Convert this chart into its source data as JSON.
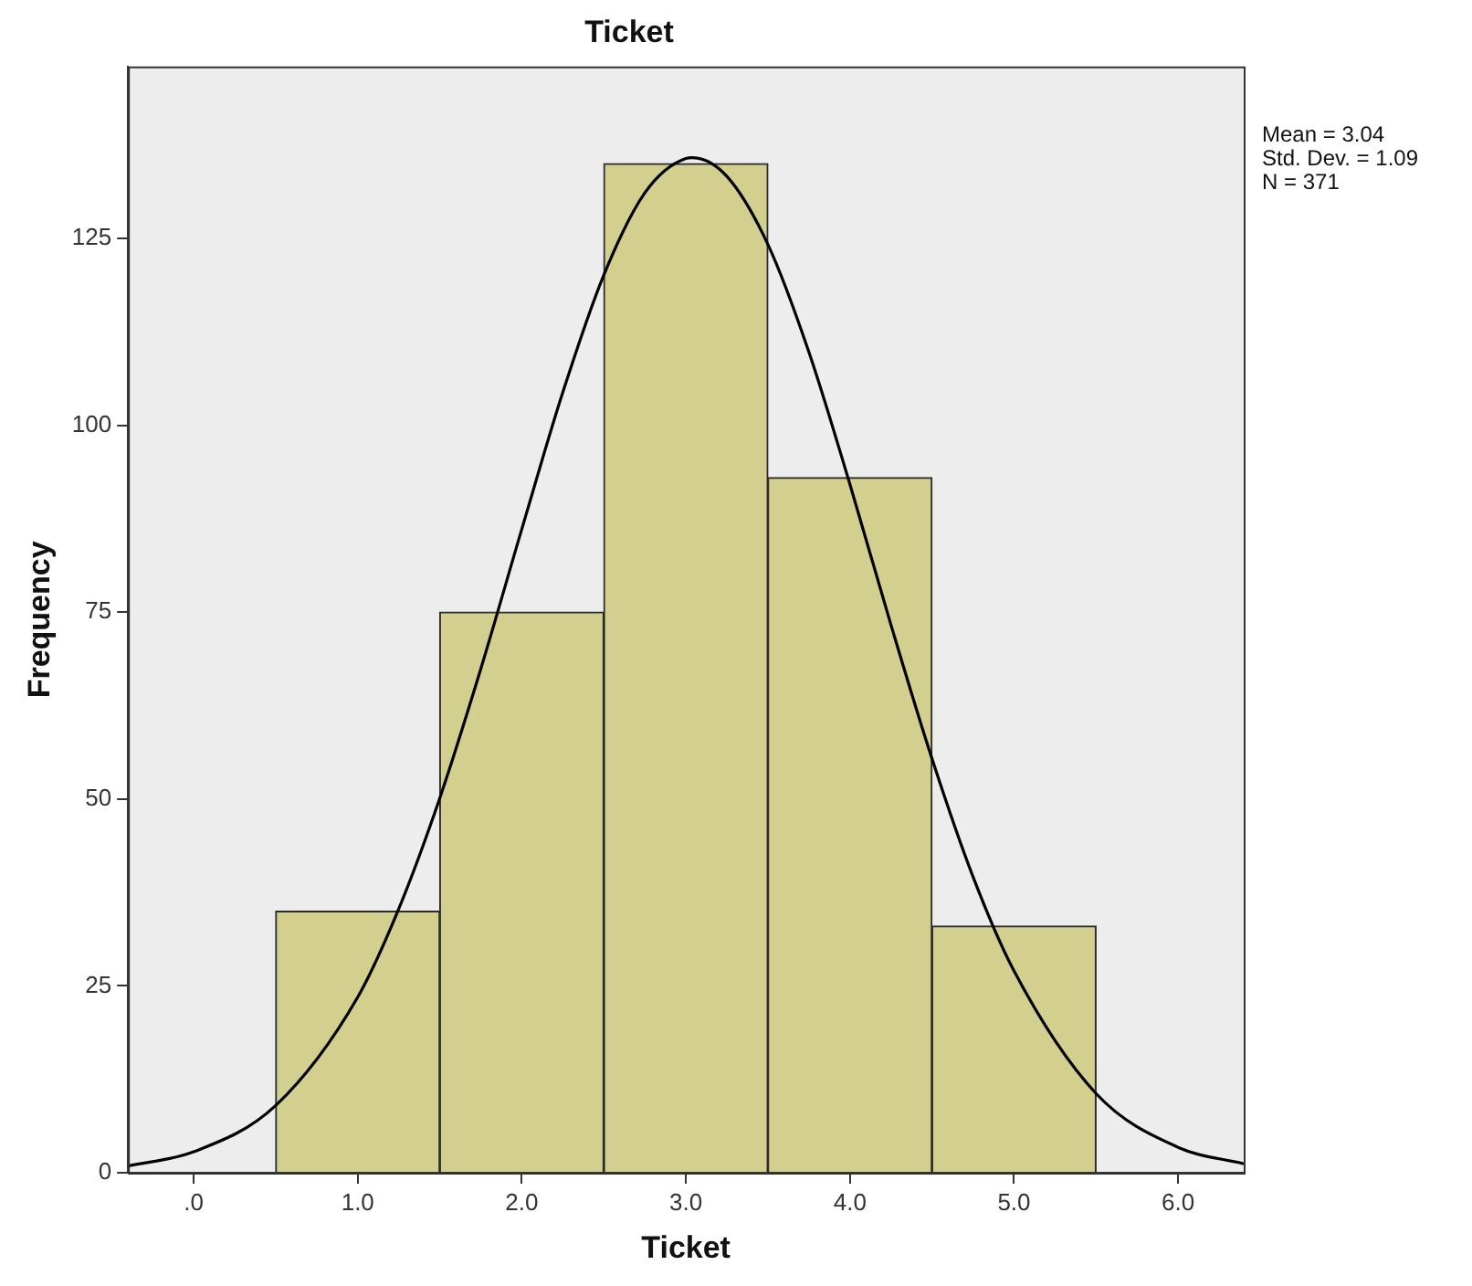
{
  "chart_data": {
    "type": "histogram",
    "title": "Ticket",
    "xlabel": "Ticket",
    "ylabel": "Frequency",
    "bins": [
      0.5,
      1.5,
      2.5,
      3.5,
      4.5,
      5.5
    ],
    "values": [
      35,
      75,
      135,
      93,
      33
    ],
    "color": "#d3cf8f",
    "xlim": [
      -0.4,
      6.4
    ],
    "xticks": [
      {
        "value": 0,
        "label": ".0"
      },
      {
        "value": 1,
        "label": "1.0"
      },
      {
        "value": 2,
        "label": "2.0"
      },
      {
        "value": 3,
        "label": "3.0"
      },
      {
        "value": 4,
        "label": "4.0"
      },
      {
        "value": 5,
        "label": "5.0"
      },
      {
        "value": 6,
        "label": "6.0"
      }
    ],
    "ylim": [
      0,
      148
    ],
    "yticks": [
      0,
      25,
      50,
      75,
      100,
      125
    ],
    "series": [
      {
        "type": "line",
        "color": "#000000",
        "x": [
          -0.4,
          0,
          0.5,
          1,
          1.25,
          1.5,
          1.75,
          2,
          2.25,
          2.5,
          2.75,
          3,
          3.04,
          3.25,
          3.5,
          3.75,
          4,
          4.25,
          4.5,
          4.75,
          5,
          5.5,
          6,
          6.4
        ],
        "values": [
          0.9,
          2.8,
          9,
          23.5,
          35.3,
          50.1,
          67.4,
          86.1,
          104.4,
          120.1,
          131.1,
          135.7,
          135.8,
          133.3,
          124.2,
          109.8,
          92.1,
          73.3,
          55.4,
          39.6,
          27,
          10.6,
          3.4,
          1.2
        ]
      }
    ],
    "annotations": [
      "Mean = 3.04",
      "Std. Dev. = 1.09",
      "N = 371"
    ],
    "grid": false,
    "legend": false,
    "marker": "none",
    "line_style": "solid"
  }
}
